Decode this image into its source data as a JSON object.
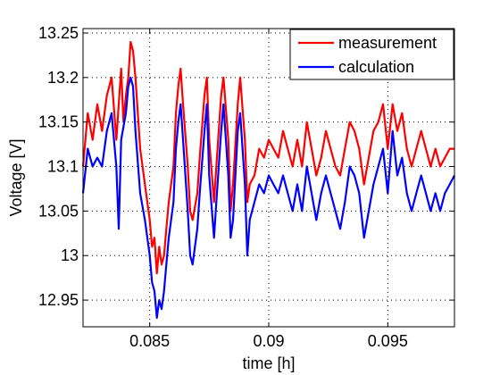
{
  "chart_data": {
    "type": "line",
    "xlabel": "time [h]",
    "ylabel": "Voltage [V]",
    "xlim": [
      0.0822,
      0.0978
    ],
    "ylim": [
      12.92,
      13.255
    ],
    "xticks": [
      0.085,
      0.09,
      0.095
    ],
    "xtick_labels": [
      "0.085",
      "0.09",
      "0.095"
    ],
    "yticks": [
      12.95,
      13,
      13.05,
      13.1,
      13.15,
      13.2,
      13.25
    ],
    "ytick_labels": [
      "12.95",
      "13",
      "13.05",
      "13.1",
      "13.15",
      "13.2",
      "13.25"
    ],
    "grid": true,
    "legend_position": "top-right",
    "series": [
      {
        "name": "measurement",
        "color": "#ff0000",
        "points": [
          [
            0.0822,
            13.1
          ],
          [
            0.0824,
            13.16
          ],
          [
            0.0826,
            13.13
          ],
          [
            0.0828,
            13.17
          ],
          [
            0.083,
            13.14
          ],
          [
            0.0832,
            13.18
          ],
          [
            0.0834,
            13.2
          ],
          [
            0.0836,
            13.13
          ],
          [
            0.0838,
            13.21
          ],
          [
            0.0839,
            13.15
          ],
          [
            0.084,
            13.18
          ],
          [
            0.0841,
            13.2
          ],
          [
            0.0842,
            13.24
          ],
          [
            0.0843,
            13.23
          ],
          [
            0.0844,
            13.2
          ],
          [
            0.0846,
            13.12
          ],
          [
            0.0848,
            13.08
          ],
          [
            0.085,
            13.04
          ],
          [
            0.0851,
            13.01
          ],
          [
            0.0852,
            13.02
          ],
          [
            0.0853,
            12.98
          ],
          [
            0.0854,
            13.01
          ],
          [
            0.0855,
            12.99
          ],
          [
            0.0856,
            13.0
          ],
          [
            0.0857,
            13.03
          ],
          [
            0.0858,
            13.06
          ],
          [
            0.086,
            13.1
          ],
          [
            0.0861,
            13.16
          ],
          [
            0.0862,
            13.19
          ],
          [
            0.0863,
            13.21
          ],
          [
            0.0864,
            13.17
          ],
          [
            0.0866,
            13.1
          ],
          [
            0.0867,
            13.05
          ],
          [
            0.0868,
            13.04
          ],
          [
            0.087,
            13.07
          ],
          [
            0.0871,
            13.11
          ],
          [
            0.0873,
            13.18
          ],
          [
            0.0874,
            13.2
          ],
          [
            0.0875,
            13.13
          ],
          [
            0.0877,
            13.06
          ],
          [
            0.0878,
            13.1
          ],
          [
            0.088,
            13.18
          ],
          [
            0.0881,
            13.2
          ],
          [
            0.0883,
            13.13
          ],
          [
            0.0884,
            13.05
          ],
          [
            0.0885,
            13.08
          ],
          [
            0.0887,
            13.17
          ],
          [
            0.0888,
            13.2
          ],
          [
            0.089,
            13.13
          ],
          [
            0.0891,
            13.06
          ],
          [
            0.0892,
            13.08
          ],
          [
            0.0894,
            13.09
          ],
          [
            0.0896,
            13.12
          ],
          [
            0.0898,
            13.11
          ],
          [
            0.09,
            13.13
          ],
          [
            0.0902,
            13.12
          ],
          [
            0.0904,
            13.11
          ],
          [
            0.0906,
            13.14
          ],
          [
            0.0908,
            13.12
          ],
          [
            0.091,
            13.1
          ],
          [
            0.0912,
            13.13
          ],
          [
            0.0914,
            13.1
          ],
          [
            0.0916,
            13.15
          ],
          [
            0.0918,
            13.12
          ],
          [
            0.092,
            13.09
          ],
          [
            0.0922,
            13.11
          ],
          [
            0.0924,
            13.14
          ],
          [
            0.0926,
            13.12
          ],
          [
            0.0928,
            13.1
          ],
          [
            0.093,
            13.09
          ],
          [
            0.0932,
            13.12
          ],
          [
            0.0934,
            13.15
          ],
          [
            0.0936,
            13.14
          ],
          [
            0.0938,
            13.12
          ],
          [
            0.094,
            13.08
          ],
          [
            0.0942,
            13.11
          ],
          [
            0.0944,
            13.14
          ],
          [
            0.0946,
            13.15
          ],
          [
            0.0948,
            13.17
          ],
          [
            0.095,
            13.12
          ],
          [
            0.0952,
            13.17
          ],
          [
            0.0954,
            13.14
          ],
          [
            0.0956,
            13.16
          ],
          [
            0.0958,
            13.12
          ],
          [
            0.096,
            13.1
          ],
          [
            0.0962,
            13.12
          ],
          [
            0.0964,
            13.14
          ],
          [
            0.0966,
            13.12
          ],
          [
            0.0968,
            13.1
          ],
          [
            0.097,
            13.12
          ],
          [
            0.0972,
            13.1
          ],
          [
            0.0974,
            13.11
          ],
          [
            0.0976,
            13.12
          ],
          [
            0.0978,
            13.12
          ]
        ]
      },
      {
        "name": "calculation",
        "color": "#0000ff",
        "points": [
          [
            0.0822,
            13.07
          ],
          [
            0.0824,
            13.12
          ],
          [
            0.0826,
            13.1
          ],
          [
            0.0828,
            13.11
          ],
          [
            0.083,
            13.1
          ],
          [
            0.0832,
            13.14
          ],
          [
            0.0834,
            13.16
          ],
          [
            0.0836,
            13.1
          ],
          [
            0.0837,
            13.03
          ],
          [
            0.0838,
            13.13
          ],
          [
            0.084,
            13.16
          ],
          [
            0.0841,
            13.19
          ],
          [
            0.0842,
            13.2
          ],
          [
            0.0843,
            13.19
          ],
          [
            0.0844,
            13.14
          ],
          [
            0.0846,
            13.07
          ],
          [
            0.0848,
            13.04
          ],
          [
            0.085,
            13.0
          ],
          [
            0.0851,
            12.97
          ],
          [
            0.0852,
            12.96
          ],
          [
            0.0853,
            12.93
          ],
          [
            0.0854,
            12.95
          ],
          [
            0.0855,
            12.94
          ],
          [
            0.0856,
            12.96
          ],
          [
            0.0857,
            12.99
          ],
          [
            0.0858,
            13.02
          ],
          [
            0.086,
            13.06
          ],
          [
            0.0861,
            13.12
          ],
          [
            0.0862,
            13.15
          ],
          [
            0.0863,
            13.17
          ],
          [
            0.0864,
            13.13
          ],
          [
            0.0866,
            13.05
          ],
          [
            0.0867,
            13.0
          ],
          [
            0.0868,
            12.99
          ],
          [
            0.087,
            13.03
          ],
          [
            0.0871,
            13.07
          ],
          [
            0.0873,
            13.14
          ],
          [
            0.0874,
            13.17
          ],
          [
            0.0875,
            13.09
          ],
          [
            0.0877,
            13.02
          ],
          [
            0.0878,
            13.06
          ],
          [
            0.088,
            13.14
          ],
          [
            0.0881,
            13.17
          ],
          [
            0.0883,
            13.09
          ],
          [
            0.0884,
            13.02
          ],
          [
            0.0885,
            13.04
          ],
          [
            0.0887,
            13.14
          ],
          [
            0.0888,
            13.16
          ],
          [
            0.089,
            13.08
          ],
          [
            0.0891,
            13.0
          ],
          [
            0.0892,
            13.04
          ],
          [
            0.0894,
            13.06
          ],
          [
            0.0896,
            13.08
          ],
          [
            0.0898,
            13.07
          ],
          [
            0.09,
            13.09
          ],
          [
            0.0902,
            13.08
          ],
          [
            0.0904,
            13.07
          ],
          [
            0.0906,
            13.09
          ],
          [
            0.0908,
            13.07
          ],
          [
            0.091,
            13.05
          ],
          [
            0.0912,
            13.08
          ],
          [
            0.0914,
            13.05
          ],
          [
            0.0916,
            13.1
          ],
          [
            0.0918,
            13.07
          ],
          [
            0.092,
            13.04
          ],
          [
            0.0922,
            13.07
          ],
          [
            0.0924,
            13.09
          ],
          [
            0.0926,
            13.07
          ],
          [
            0.0928,
            13.05
          ],
          [
            0.093,
            13.03
          ],
          [
            0.0932,
            13.06
          ],
          [
            0.0934,
            13.1
          ],
          [
            0.0936,
            13.09
          ],
          [
            0.0938,
            13.07
          ],
          [
            0.094,
            13.02
          ],
          [
            0.0942,
            13.05
          ],
          [
            0.0944,
            13.08
          ],
          [
            0.0946,
            13.1
          ],
          [
            0.0948,
            13.12
          ],
          [
            0.095,
            13.07
          ],
          [
            0.0952,
            13.14
          ],
          [
            0.0954,
            13.09
          ],
          [
            0.0956,
            13.11
          ],
          [
            0.0958,
            13.07
          ],
          [
            0.096,
            13.05
          ],
          [
            0.0962,
            13.07
          ],
          [
            0.0964,
            13.09
          ],
          [
            0.0966,
            13.07
          ],
          [
            0.0968,
            13.05
          ],
          [
            0.097,
            13.07
          ],
          [
            0.0972,
            13.05
          ],
          [
            0.0974,
            13.07
          ],
          [
            0.0976,
            13.08
          ],
          [
            0.0978,
            13.09
          ]
        ]
      }
    ]
  }
}
